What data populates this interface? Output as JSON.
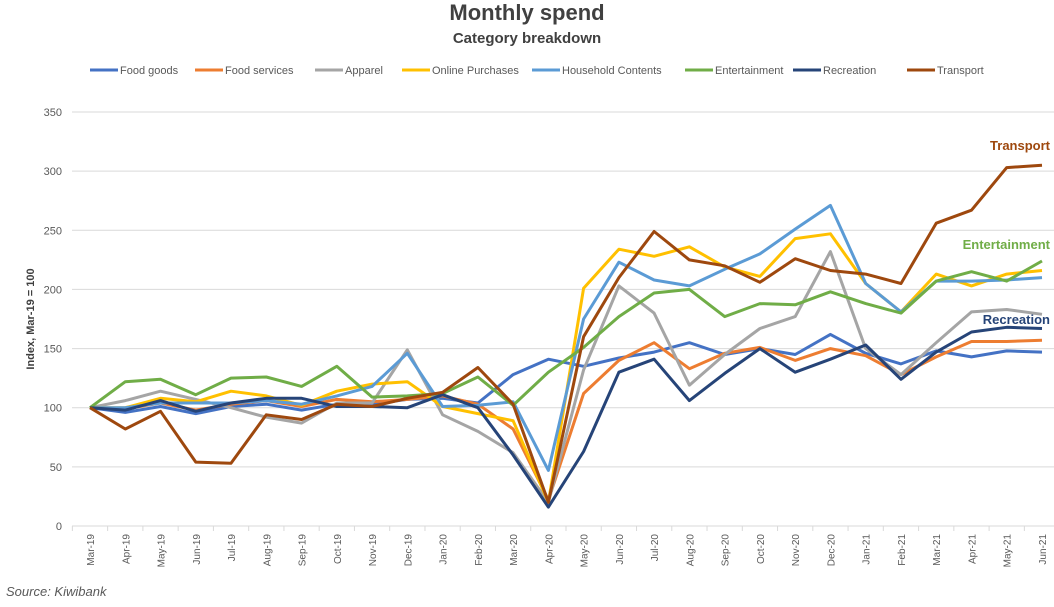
{
  "chart_data": {
    "type": "line",
    "title": "Monthly spend",
    "subtitle": "Category breakdown",
    "ylabel": "Index, Mar-19 = 100",
    "xlabel": "",
    "ylim": [
      0,
      350
    ],
    "yticks": [
      0,
      50,
      100,
      150,
      200,
      250,
      300,
      350
    ],
    "grid": true,
    "legend": "top",
    "source": "Source: Kiwibank",
    "categories": [
      "Mar-19",
      "Apr-19",
      "May-19",
      "Jun-19",
      "Jul-19",
      "Aug-19",
      "Sep-19",
      "Oct-19",
      "Nov-19",
      "Dec-19",
      "Jan-20",
      "Feb-20",
      "Mar-20",
      "Apr-20",
      "May-20",
      "Jun-20",
      "Jul-20",
      "Aug-20",
      "Sep-20",
      "Oct-20",
      "Nov-20",
      "Dec-20",
      "Jan-21",
      "Feb-21",
      "Mar-21",
      "Apr-21",
      "May-21",
      "Jun-21"
    ],
    "series": [
      {
        "name": "Food goods",
        "color": "#4472C4",
        "values": [
          100,
          96,
          101,
          95,
          101,
          103,
          98,
          103,
          103,
          107,
          108,
          104,
          128,
          141,
          135,
          142,
          147,
          155,
          145,
          150,
          145,
          162,
          146,
          137,
          148,
          143,
          148,
          147
        ]
      },
      {
        "name": "Food services",
        "color": "#ED7D31",
        "values": [
          100,
          99,
          104,
          98,
          103,
          106,
          101,
          107,
          105,
          107,
          110,
          103,
          82,
          22,
          112,
          140,
          155,
          133,
          146,
          151,
          140,
          150,
          144,
          128,
          143,
          156,
          156,
          157
        ]
      },
      {
        "name": "Apparel",
        "color": "#A5A5A5",
        "values": [
          100,
          106,
          114,
          107,
          100,
          92,
          87,
          104,
          104,
          149,
          94,
          80,
          62,
          20,
          132,
          203,
          180,
          119,
          145,
          167,
          177,
          232,
          150,
          128,
          155,
          181,
          183,
          179
        ]
      },
      {
        "name": "Online Purchases",
        "color": "#FFC000",
        "values": [
          100,
          100,
          108,
          105,
          114,
          110,
          102,
          114,
          120,
          122,
          101,
          95,
          89,
          20,
          201,
          234,
          228,
          236,
          219,
          211,
          243,
          247,
          205,
          181,
          213,
          203,
          213,
          216
        ]
      },
      {
        "name": "Household Contents",
        "color": "#5B9BD5",
        "values": [
          100,
          100,
          104,
          104,
          104,
          106,
          103,
          110,
          118,
          146,
          101,
          102,
          105,
          47,
          175,
          223,
          208,
          203,
          217,
          230,
          251,
          271,
          205,
          181,
          207,
          207,
          208,
          210
        ]
      },
      {
        "name": "Entertainment",
        "color": "#70AD47",
        "values": [
          100,
          122,
          124,
          111,
          125,
          126,
          118,
          135,
          109,
          110,
          112,
          126,
          102,
          130,
          151,
          177,
          197,
          200,
          177,
          188,
          187,
          198,
          188,
          180,
          207,
          215,
          207,
          224
        ]
      },
      {
        "name": "Recreation",
        "color": "#264478",
        "values": [
          100,
          98,
          106,
          97,
          104,
          108,
          108,
          101,
          101,
          100,
          111,
          100,
          60,
          16,
          63,
          130,
          141,
          106,
          129,
          150,
          130,
          141,
          153,
          124,
          147,
          164,
          168,
          167
        ]
      },
      {
        "name": "Transport",
        "color": "#9E480E",
        "values": [
          100,
          82,
          97,
          54,
          53,
          94,
          90,
          103,
          101,
          108,
          113,
          134,
          103,
          20,
          160,
          210,
          249,
          225,
          220,
          206,
          226,
          216,
          213,
          205,
          256,
          267,
          303,
          305
        ]
      }
    ],
    "annotations": [
      {
        "text": "Transport",
        "series": "Transport",
        "color": "#9E480E"
      },
      {
        "text": "Entertainment",
        "series": "Entertainment",
        "color": "#70AD47"
      },
      {
        "text": "Recreation",
        "series": "Recreation",
        "color": "#264478"
      }
    ]
  }
}
